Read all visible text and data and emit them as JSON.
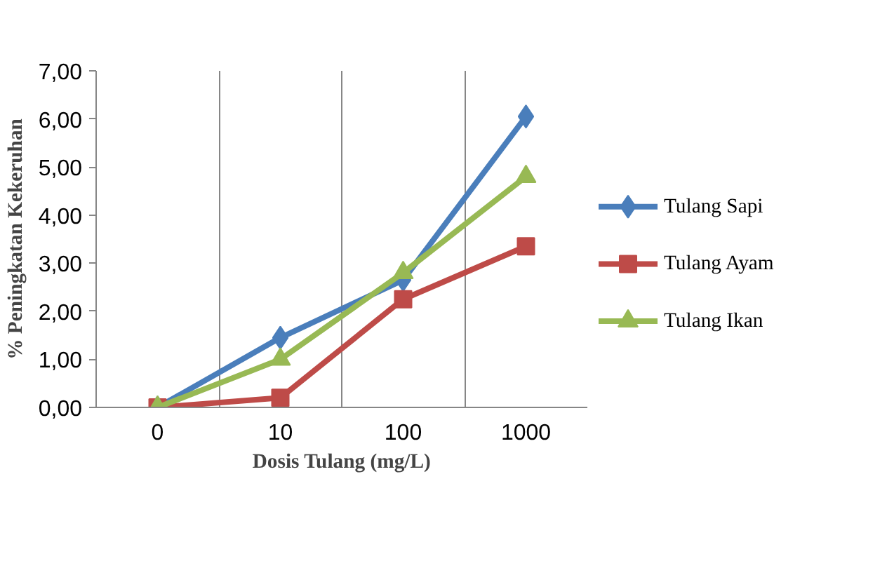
{
  "chart_data": {
    "type": "line",
    "xlabel": "Dosis Tulang (mg/L)",
    "ylabel": "% Peningkatan Kekeruhan",
    "categories": [
      "0",
      "10",
      "100",
      "1000"
    ],
    "series": [
      {
        "name": "Tulang Sapi",
        "color": "#4a7ebb",
        "marker": "diamond",
        "values": [
          0,
          1.45,
          2.65,
          6.05
        ]
      },
      {
        "name": "Tulang Ayam",
        "color": "#be4b48",
        "marker": "square",
        "values": [
          0,
          0.2,
          2.25,
          3.35
        ]
      },
      {
        "name": "Tulang Ikan",
        "color": "#98b954",
        "marker": "triangle",
        "values": [
          0,
          1.0,
          2.8,
          4.8
        ]
      }
    ],
    "ylim": [
      0,
      7
    ],
    "yticks": [
      {
        "value": 0,
        "label": "0,00"
      },
      {
        "value": 1,
        "label": "1,00"
      },
      {
        "value": 2,
        "label": "2,00"
      },
      {
        "value": 3,
        "label": "3,00"
      },
      {
        "value": 4,
        "label": "4,00"
      },
      {
        "value": 5,
        "label": "5,00"
      },
      {
        "value": 6,
        "label": "6,00"
      },
      {
        "value": 7,
        "label": "7,00"
      }
    ],
    "grid": "x",
    "legend": "right"
  }
}
